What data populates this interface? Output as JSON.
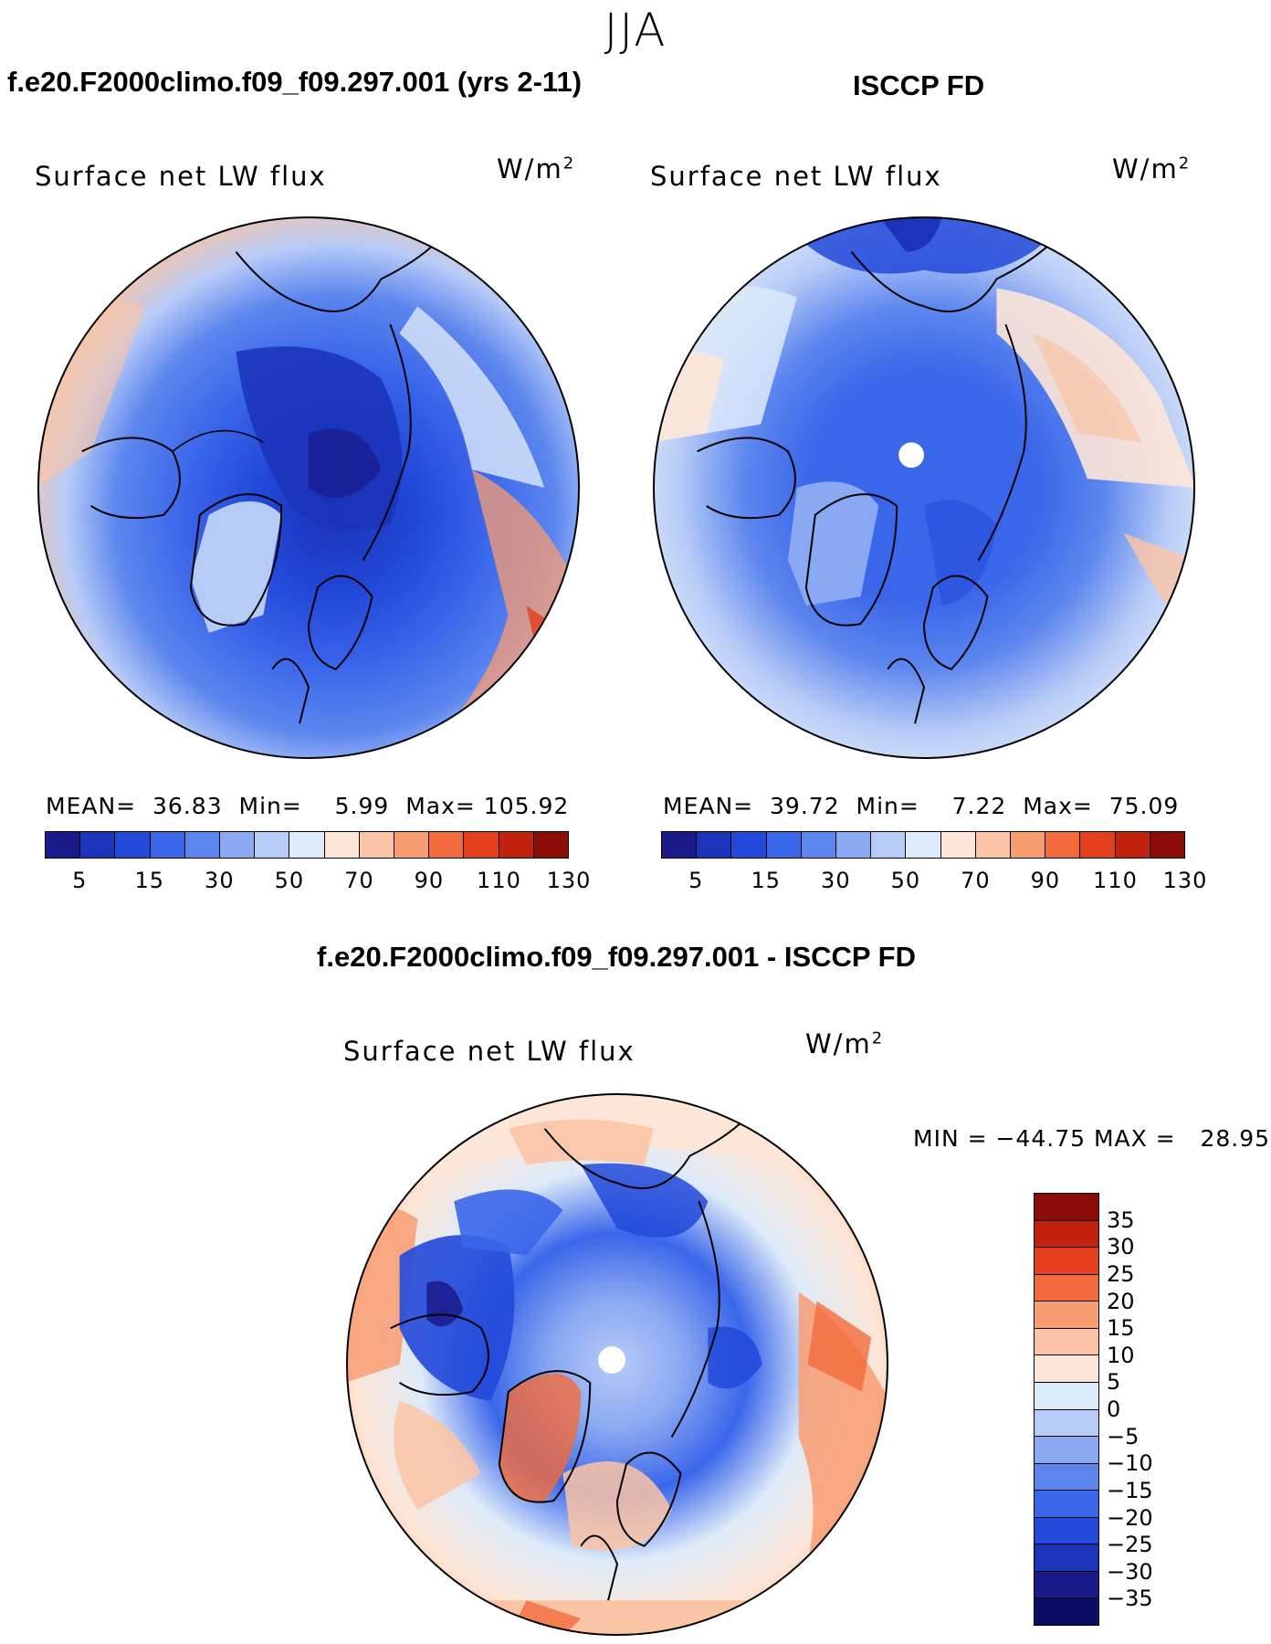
{
  "page_title": "JJA",
  "panels": {
    "model": {
      "title": "f.e20.F2000climo.f09_f09.297.001 (yrs 2-11)",
      "variable": "Surface net LW flux",
      "units": "W/m",
      "units_exp": "2",
      "stats": {
        "mean_label": "MEAN=",
        "mean": "36.83",
        "min_label": "Min=",
        "min": "5.99",
        "max_label": "Max=",
        "max": "105.92"
      }
    },
    "obs": {
      "title": "ISCCP FD",
      "variable": "Surface net LW flux",
      "units": "W/m",
      "units_exp": "2",
      "stats": {
        "mean_label": "MEAN=",
        "mean": "39.72",
        "min_label": "Min=",
        "min": "7.22",
        "max_label": "Max=",
        "max": "75.09"
      }
    },
    "diff": {
      "title": "f.e20.F2000climo.f09_f09.297.001 - ISCCP FD",
      "variable": "Surface net LW flux",
      "units": "W/m",
      "units_exp": "2",
      "min_max": "MIN = −44.75 MAX =   28.95"
    }
  },
  "colorbar_main": {
    "labels": [
      "5",
      "15",
      "30",
      "50",
      "70",
      "90",
      "110",
      "130"
    ],
    "colors": [
      "#1a1a8a",
      "#1a33b8",
      "#2249d9",
      "#3a66ea",
      "#5c86ee",
      "#8aa9f2",
      "#b7cbf7",
      "#ddeaf9",
      "#fde6d7",
      "#fbc4a5",
      "#f89c72",
      "#f26b3c",
      "#e43f1c",
      "#c2220e",
      "#8c0d06"
    ]
  },
  "colorbar_diff": {
    "labels": [
      "35",
      "30",
      "25",
      "20",
      "15",
      "10",
      "5",
      "0",
      "−5",
      "−10",
      "−15",
      "−20",
      "−25",
      "−30",
      "−35"
    ],
    "colors": [
      "#8c0d06",
      "#c2220e",
      "#e43f1c",
      "#f26b3c",
      "#f89c72",
      "#fbc4a5",
      "#fde6d7",
      "#ddeaf9",
      "#b7cbf7",
      "#8aa9f2",
      "#5c86ee",
      "#3a66ea",
      "#2249d9",
      "#1a33b8",
      "#1a1a8a",
      "#0d0d66"
    ]
  }
}
